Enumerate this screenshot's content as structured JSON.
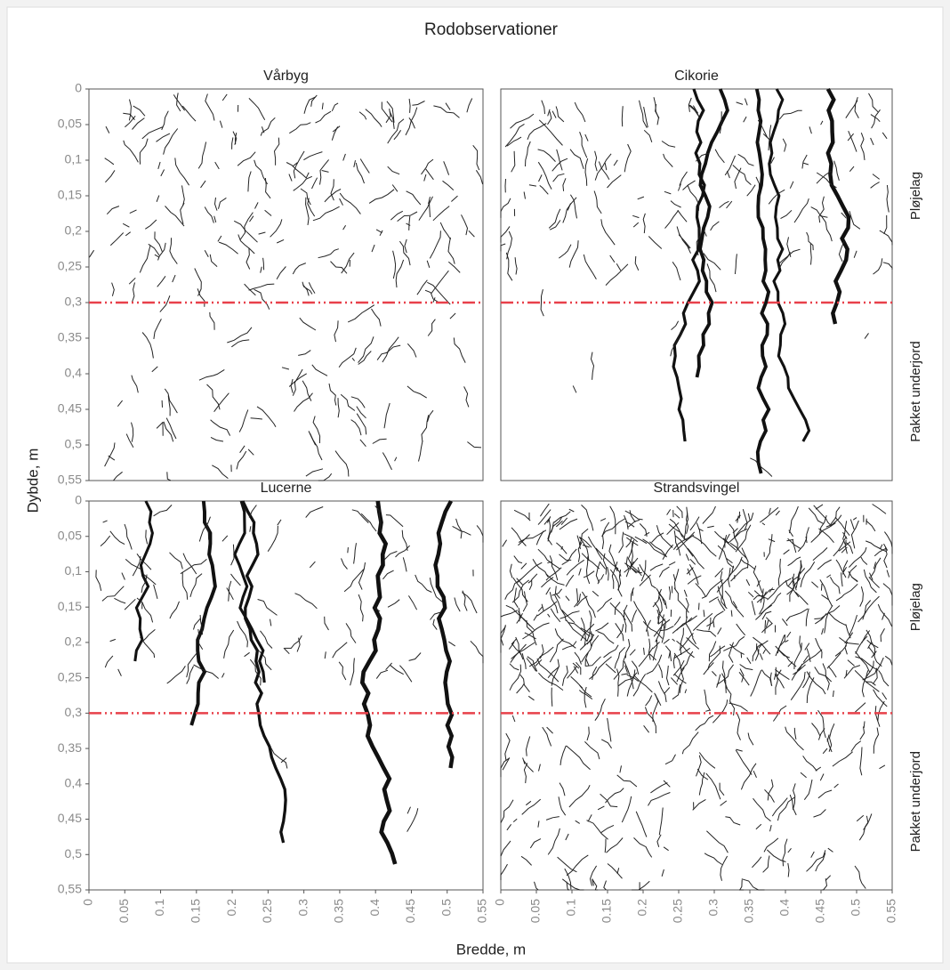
{
  "title": "Rodobservationer",
  "xlabel": "Bredde, m",
  "ylabel": "Dybde, m",
  "chart_data": [
    {
      "type": "root-map",
      "title": "Vårbyg",
      "xlim": [
        0,
        0.55
      ],
      "ylim": [
        0.55,
        0
      ],
      "yticks": [
        0,
        {
          "value": 0.05,
          "label": "0,05"
        },
        {
          "value": 0.1,
          "label": "0,1"
        },
        {
          "value": 0.15,
          "label": "0,15"
        },
        {
          "value": 0.2,
          "label": "0,2"
        },
        {
          "value": 0.25,
          "label": "0,25"
        },
        {
          "value": 0.3,
          "label": "0,3"
        },
        {
          "value": 0.35,
          "label": "0,35"
        },
        {
          "value": 0.4,
          "label": "0,4"
        },
        {
          "value": 0.45,
          "label": "0,45"
        },
        {
          "value": 0.5,
          "label": "0,5"
        },
        {
          "value": 0.55,
          "label": "0,55"
        }
      ],
      "hline": 0.3,
      "hline_color": "#e8404a"
    },
    {
      "type": "root-map",
      "title": "Cikorie",
      "xlim": [
        0,
        0.55
      ],
      "ylim": [
        0.55,
        0
      ],
      "hline": 0.3,
      "hline_color": "#e8404a",
      "annotations": [
        "Pløjelag",
        "Pakket underjord"
      ]
    },
    {
      "type": "root-map",
      "title": "Lucerne",
      "xlim": [
        0,
        0.55
      ],
      "ylim": [
        0.55,
        0
      ],
      "yticks": [
        0,
        {
          "value": 0.05,
          "label": "0,05"
        },
        {
          "value": 0.1,
          "label": "0,1"
        },
        {
          "value": 0.15,
          "label": "0,15"
        },
        {
          "value": 0.2,
          "label": "0,2"
        },
        {
          "value": 0.25,
          "label": "0,25"
        },
        {
          "value": 0.3,
          "label": "0,3"
        },
        {
          "value": 0.35,
          "label": "0,35"
        },
        {
          "value": 0.4,
          "label": "0,4"
        },
        {
          "value": 0.45,
          "label": "0,45"
        },
        {
          "value": 0.5,
          "label": "0,5"
        },
        {
          "value": 0.55,
          "label": "0,55"
        }
      ],
      "xticks": [
        0,
        0.05,
        0.1,
        0.15,
        0.2,
        0.25,
        0.3,
        0.35,
        0.4,
        0.45,
        0.5,
        0.55
      ],
      "hline": 0.3,
      "hline_color": "#e8404a"
    },
    {
      "type": "root-map",
      "title": "Strandsvingel",
      "xlim": [
        0,
        0.55
      ],
      "ylim": [
        0.55,
        0
      ],
      "xticks": [
        0,
        0.05,
        0.1,
        0.15,
        0.2,
        0.25,
        0.3,
        0.35,
        0.4,
        0.45,
        0.5,
        0.55
      ],
      "hline": 0.3,
      "hline_color": "#e8404a",
      "annotations": [
        "Pløjelag",
        "Pakket underjord"
      ]
    }
  ]
}
